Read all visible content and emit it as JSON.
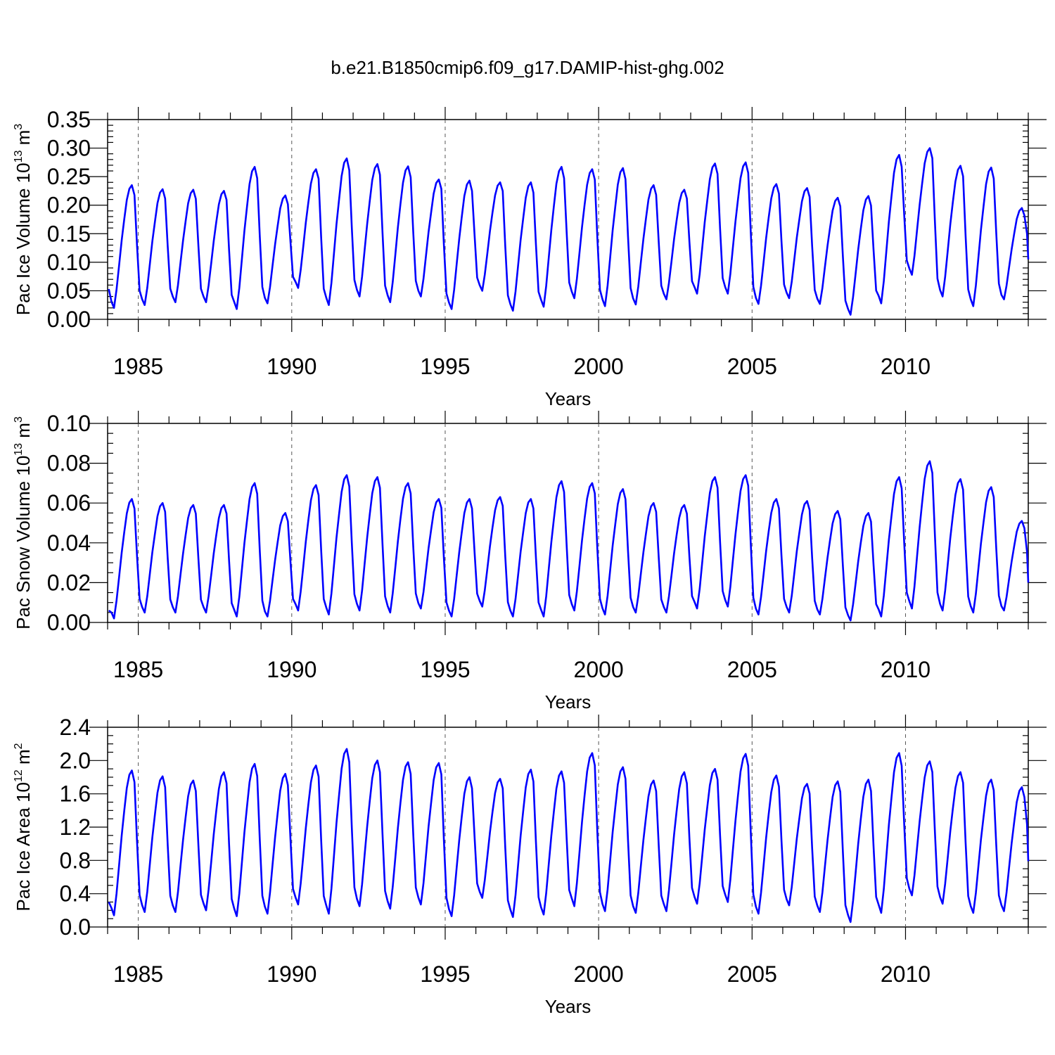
{
  "title": "b.e21.B1850cmip6.f09_g17.DAMIP-hist-ghg.002",
  "colors": {
    "line": "#0000ff",
    "grid": "#555555",
    "axis": "#000000"
  },
  "chart_data": [
    {
      "type": "line",
      "xlabel": "Years",
      "ylabel_main": "Pac Ice Volume 10",
      "ylabel_exp": "13",
      "ylabel_unit": " m",
      "ylabel_unit_exp": "3",
      "xlim": [
        1984.0,
        2014.0
      ],
      "ylim": [
        0.0,
        0.35
      ],
      "x_ticks": [
        1985,
        1990,
        1995,
        2000,
        2005,
        2010
      ],
      "x_tick_labels": [
        "1985",
        "1990",
        "1995",
        "2000",
        "2005",
        "2010"
      ],
      "y_ticks": [
        0,
        0.05,
        0.1,
        0.15,
        0.2,
        0.25,
        0.3,
        0.35
      ],
      "y_tick_labels": [
        "0.00",
        "0.05",
        "0.10",
        "0.15",
        "0.20",
        "0.25",
        "0.30",
        "0.35"
      ],
      "grid": "dashed vertical at 5-year ticks",
      "series": [
        {
          "start_year": 1984.0,
          "months_per_year": 12,
          "peaks": [
            0.235,
            0.228,
            0.227,
            0.225,
            0.267,
            0.217,
            0.263,
            0.282,
            0.272,
            0.268,
            0.245,
            0.243,
            0.24,
            0.24,
            0.267,
            0.263,
            0.265,
            0.235,
            0.227,
            0.273,
            0.275,
            0.237,
            0.23,
            0.213,
            0.216,
            0.288,
            0.3,
            0.269,
            0.266,
            0.195
          ],
          "troughs": [
            0.02,
            0.025,
            0.03,
            0.03,
            0.018,
            0.028,
            0.055,
            0.025,
            0.04,
            0.03,
            0.04,
            0.018,
            0.05,
            0.015,
            0.022,
            0.037,
            0.023,
            0.026,
            0.035,
            0.045,
            0.045,
            0.027,
            0.037,
            0.027,
            0.008,
            0.028,
            0.078,
            0.04,
            0.023,
            0.035
          ],
          "start_value": 0.053,
          "end_value": 0.105
        }
      ]
    },
    {
      "type": "line",
      "xlabel": "Years",
      "ylabel_main": "Pac Snow Volume 10",
      "ylabel_exp": "13",
      "ylabel_unit": " m",
      "ylabel_unit_exp": "3",
      "xlim": [
        1984.0,
        2014.0
      ],
      "ylim": [
        0.0,
        0.1
      ],
      "x_ticks": [
        1985,
        1990,
        1995,
        2000,
        2005,
        2010
      ],
      "x_tick_labels": [
        "1985",
        "1990",
        "1995",
        "2000",
        "2005",
        "2010"
      ],
      "y_ticks": [
        0,
        0.02,
        0.04,
        0.06,
        0.08,
        0.1
      ],
      "y_tick_labels": [
        "0.00",
        "0.02",
        "0.04",
        "0.06",
        "0.08",
        "0.10"
      ],
      "grid": "dashed vertical at 5-year ticks",
      "series": [
        {
          "start_year": 1984.0,
          "months_per_year": 12,
          "peaks": [
            0.062,
            0.06,
            0.059,
            0.059,
            0.07,
            0.055,
            0.069,
            0.074,
            0.073,
            0.07,
            0.062,
            0.062,
            0.063,
            0.062,
            0.071,
            0.07,
            0.067,
            0.06,
            0.059,
            0.073,
            0.074,
            0.062,
            0.061,
            0.056,
            0.055,
            0.073,
            0.081,
            0.072,
            0.068,
            0.051
          ],
          "troughs": [
            0.002,
            0.005,
            0.005,
            0.005,
            0.003,
            0.003,
            0.006,
            0.004,
            0.006,
            0.005,
            0.007,
            0.003,
            0.008,
            0.003,
            0.003,
            0.006,
            0.004,
            0.005,
            0.005,
            0.007,
            0.008,
            0.004,
            0.005,
            0.004,
            0.001,
            0.003,
            0.007,
            0.006,
            0.005,
            0.006
          ],
          "start_value": 0.006,
          "end_value": 0.02
        }
      ]
    },
    {
      "type": "line",
      "xlabel": "Years",
      "ylabel_main": "Pac Ice Area 10",
      "ylabel_exp": "12",
      "ylabel_unit": " m",
      "ylabel_unit_exp": "2",
      "xlim": [
        1984.0,
        2014.0
      ],
      "ylim": [
        0.0,
        2.4
      ],
      "x_ticks": [
        1985,
        1990,
        1995,
        2000,
        2005,
        2010
      ],
      "x_tick_labels": [
        "1985",
        "1990",
        "1995",
        "2000",
        "2005",
        "2010"
      ],
      "y_ticks": [
        0,
        0.4,
        0.8,
        1.2,
        1.6,
        2.0,
        2.4
      ],
      "y_tick_labels": [
        "0.0",
        "0.4",
        "0.8",
        "1.2",
        "1.6",
        "2.0",
        "2.4"
      ],
      "grid": "dashed vertical at 5-year ticks",
      "series": [
        {
          "start_year": 1984.0,
          "months_per_year": 12,
          "peaks": [
            1.88,
            1.81,
            1.76,
            1.86,
            1.96,
            1.84,
            1.94,
            2.14,
            2.0,
            1.98,
            1.97,
            1.8,
            1.78,
            1.89,
            1.87,
            2.09,
            1.92,
            1.76,
            1.86,
            1.9,
            2.08,
            1.82,
            1.72,
            1.75,
            1.77,
            2.09,
            1.99,
            1.86,
            1.77,
            1.68
          ],
          "troughs": [
            0.14,
            0.18,
            0.18,
            0.2,
            0.13,
            0.16,
            0.27,
            0.16,
            0.25,
            0.22,
            0.27,
            0.13,
            0.35,
            0.12,
            0.15,
            0.25,
            0.19,
            0.17,
            0.19,
            0.28,
            0.3,
            0.16,
            0.26,
            0.18,
            0.06,
            0.17,
            0.38,
            0.28,
            0.17,
            0.19
          ],
          "start_value": 0.3,
          "end_value": 0.79
        }
      ]
    }
  ]
}
